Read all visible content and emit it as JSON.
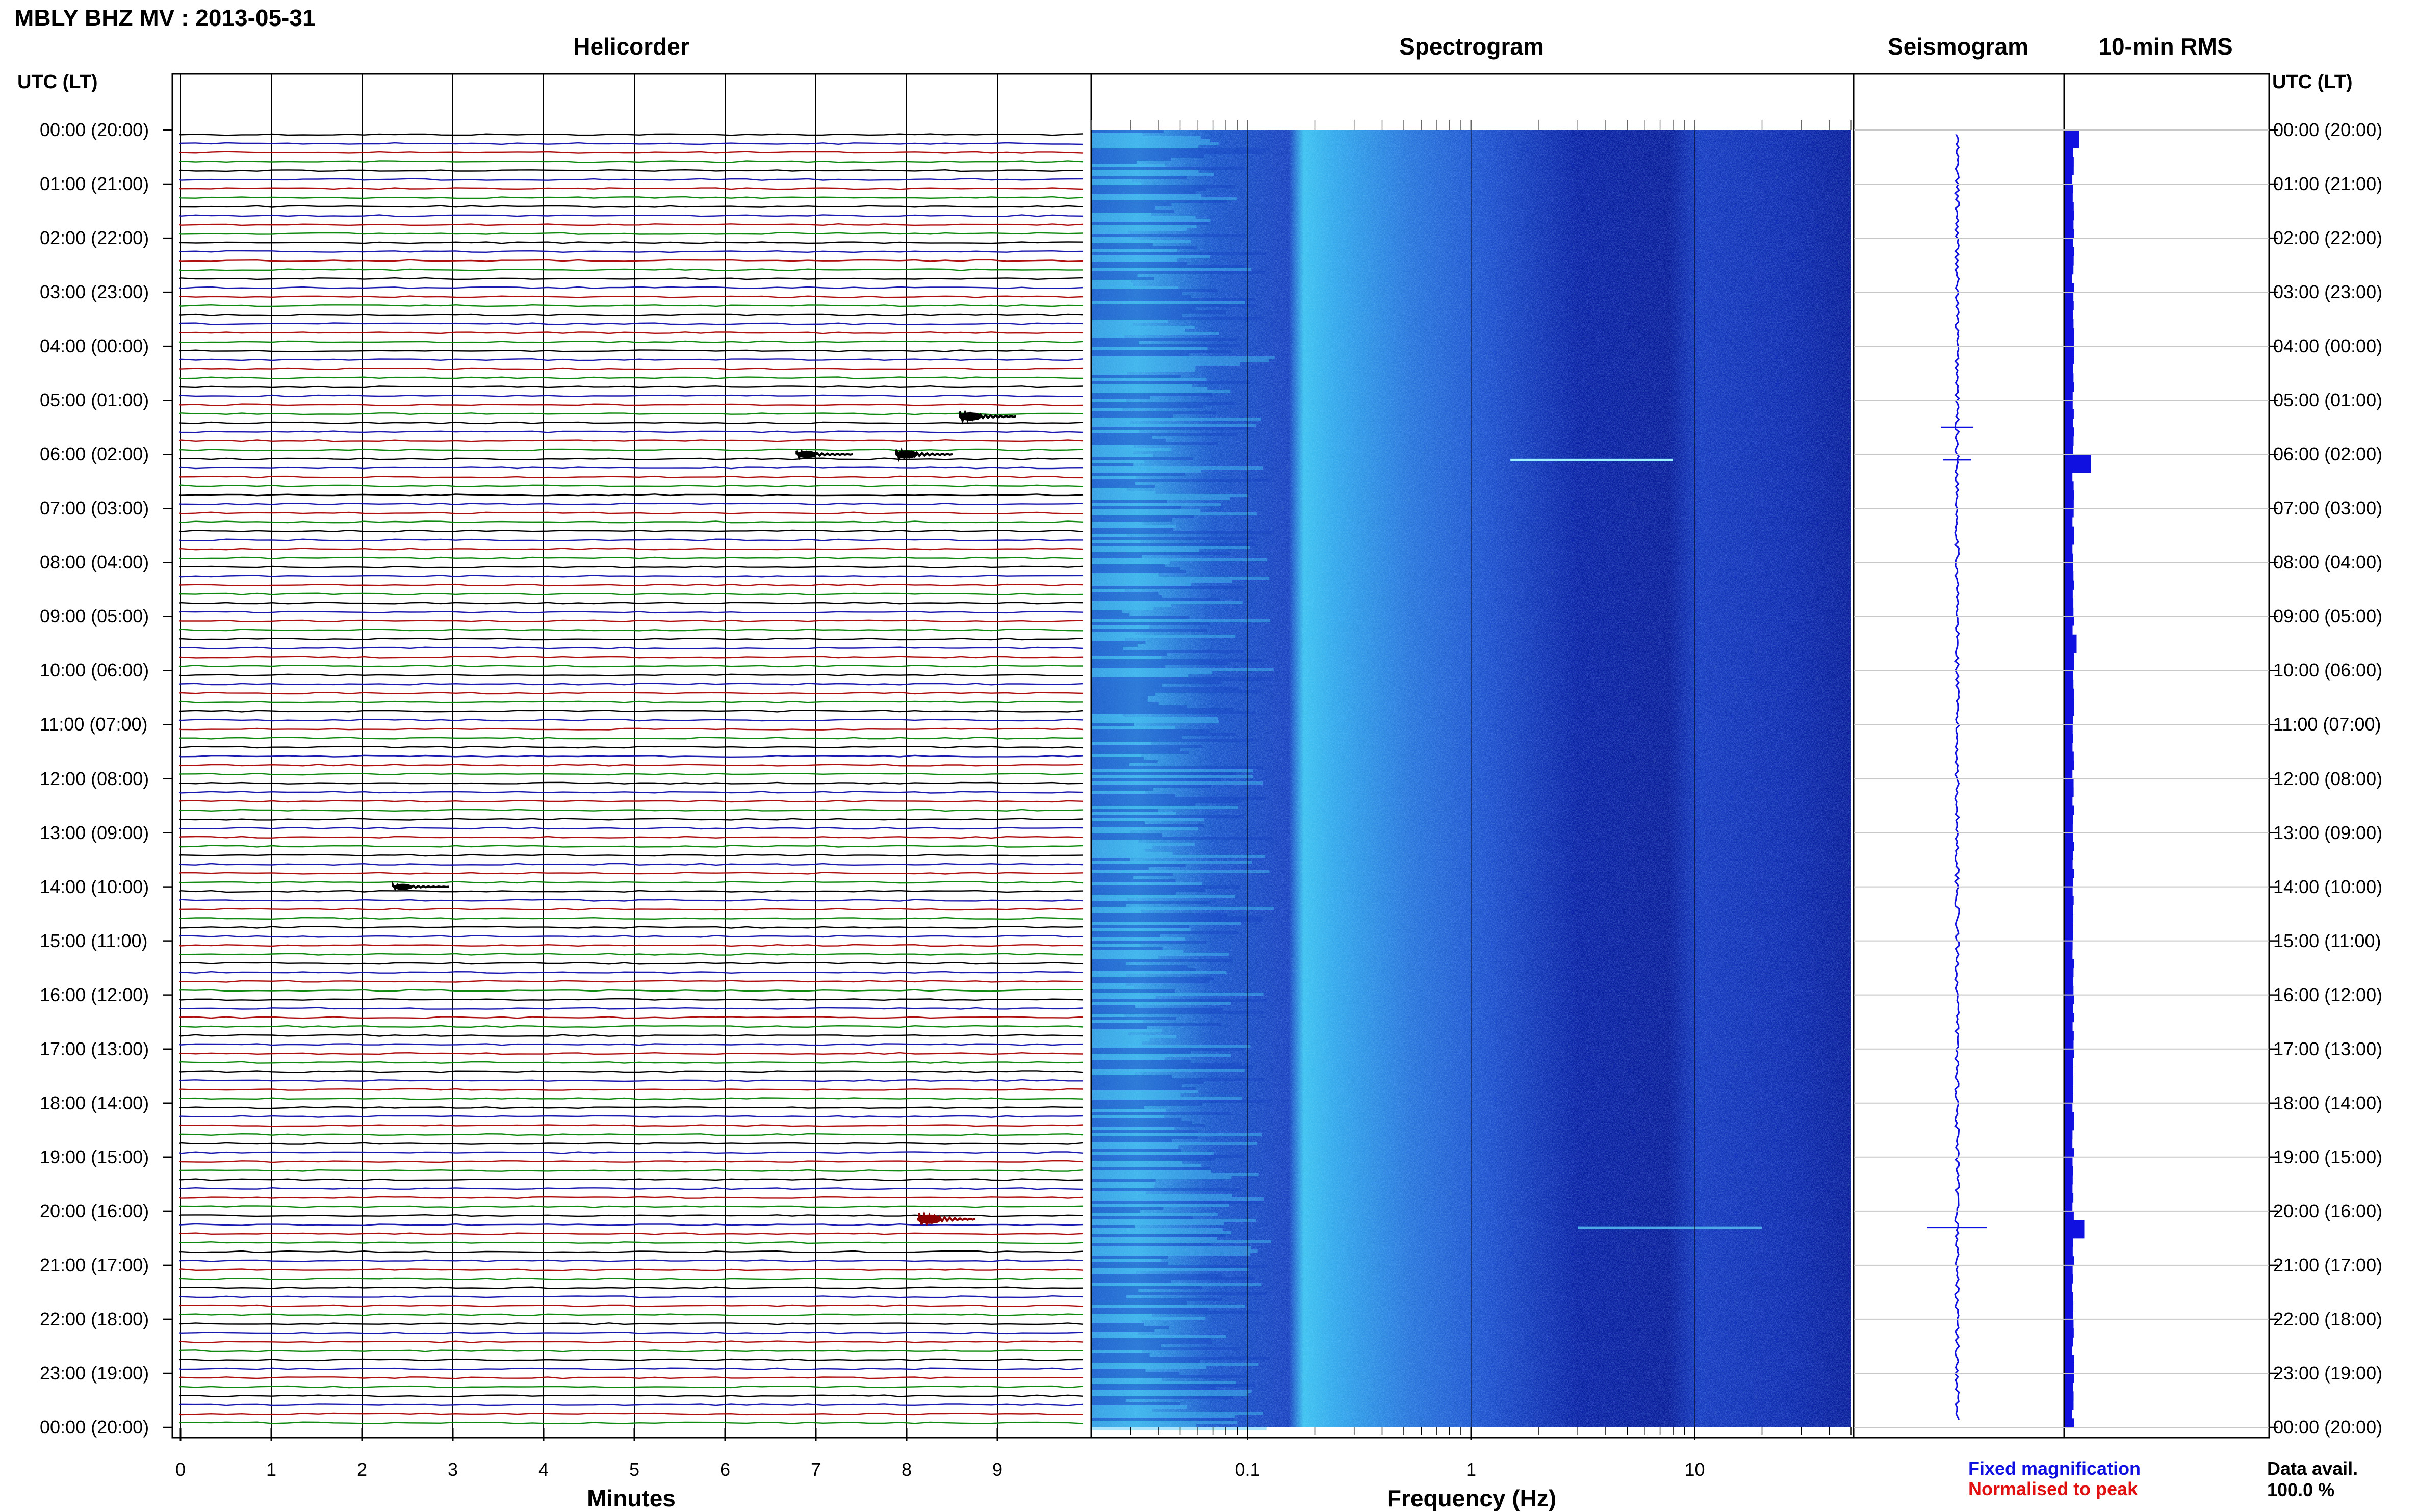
{
  "page": {
    "title": "MBLY BHZ MV : 2013-05-31",
    "time_header_left": "UTC (LT)",
    "time_header_right": "UTC (LT)"
  },
  "panels": {
    "helicorder": {
      "title": "Helicorder",
      "xlabel": "Minutes"
    },
    "spectrogram": {
      "title": "Spectrogram",
      "xlabel": "Frequency (Hz)"
    },
    "seismogram": {
      "title": "Seismogram"
    },
    "rms": {
      "title": "10-min RMS"
    }
  },
  "legend": {
    "fixed": "Fixed magnification",
    "normalised": "Normalised to peak",
    "fixed_color": "#1010e0",
    "normalised_color": "#e01010"
  },
  "data_availability": {
    "label": "Data avail.",
    "value": "100.0 %"
  },
  "colors": {
    "trace_cycle": [
      "#000000",
      "#1a1ab0",
      "#b01010",
      "#108a10"
    ],
    "spectrogram_dark": "#0a1f9e",
    "spectrogram_light": "#45c8f0",
    "seismogram": "#1010e0",
    "rms": "#1010e0"
  },
  "chart_data": [
    {
      "type": "line",
      "name": "helicorder",
      "title": "Helicorder",
      "xlabel": "Minutes",
      "xlim": [
        0,
        10
      ],
      "x_ticks": [
        "0",
        "1",
        "2",
        "3",
        "4",
        "5",
        "6",
        "7",
        "8",
        "9"
      ],
      "ylabel": "UTC (LT)",
      "y_ticks": [
        "00:00 (20:00)",
        "01:00 (21:00)",
        "02:00 (22:00)",
        "03:00 (23:00)",
        "04:00 (00:00)",
        "05:00 (01:00)",
        "06:00 (02:00)",
        "07:00 (03:00)",
        "08:00 (04:00)",
        "09:00 (05:00)",
        "10:00 (06:00)",
        "11:00 (07:00)",
        "12:00 (08:00)",
        "13:00 (09:00)",
        "14:00 (10:00)",
        "15:00 (11:00)",
        "16:00 (12:00)",
        "17:00 (13:00)",
        "18:00 (14:00)",
        "19:00 (15:00)",
        "20:00 (16:00)",
        "21:00 (17:00)",
        "22:00 (18:00)",
        "23:00 (19:00)",
        "00:00 (20:00)"
      ],
      "traces_per_hour": 6,
      "trace_minutes": 10,
      "events": [
        {
          "utc_hour": 5.3,
          "minute": 8.7,
          "amplitude": 4,
          "color": "#000000"
        },
        {
          "utc_hour": 6.0,
          "minute": 6.9,
          "amplitude": 3,
          "color": "#000000"
        },
        {
          "utc_hour": 6.0,
          "minute": 8.0,
          "amplitude": 4,
          "color": "#000000"
        },
        {
          "utc_hour": 14.0,
          "minute": 2.45,
          "amplitude": 2,
          "color": "#000000"
        },
        {
          "utc_hour": 20.15,
          "minute": 8.25,
          "amplitude": 5,
          "color": "#8b0000"
        }
      ]
    },
    {
      "type": "heatmap",
      "name": "spectrogram",
      "title": "Spectrogram",
      "xlabel": "Frequency (Hz)",
      "x_scale": "log",
      "xlim": [
        0.02,
        50
      ],
      "x_ticks": [
        "0.1",
        "1",
        "10"
      ],
      "y_range_hours": [
        0,
        24
      ],
      "features": [
        {
          "utc_hour": 6.1,
          "freq_range_hz": [
            1.5,
            8
          ],
          "note_intensity": "high"
        },
        {
          "utc_hour": 20.3,
          "freq_range_hz": [
            3,
            20
          ],
          "note_intensity": "medium"
        }
      ]
    },
    {
      "type": "line",
      "name": "seismogram",
      "title": "Seismogram",
      "y_range_hours": [
        0,
        24
      ],
      "spikes": [
        {
          "utc_hour": 5.5,
          "amplitude": 0.45
        },
        {
          "utc_hour": 6.1,
          "amplitude": 0.4
        },
        {
          "utc_hour": 20.3,
          "amplitude": 0.9
        }
      ]
    },
    {
      "type": "bar",
      "name": "rms",
      "title": "10-min RMS",
      "y_range_hours": [
        0,
        24
      ],
      "bin_minutes": 10,
      "baseline_level": 0.32,
      "peaks": [
        {
          "utc_hour": 6.1,
          "value": 1.0
        },
        {
          "utc_hour": 20.3,
          "value": 0.75
        },
        {
          "utc_hour": 0.2,
          "value": 0.55
        },
        {
          "utc_hour": 9.5,
          "value": 0.45
        }
      ]
    }
  ]
}
